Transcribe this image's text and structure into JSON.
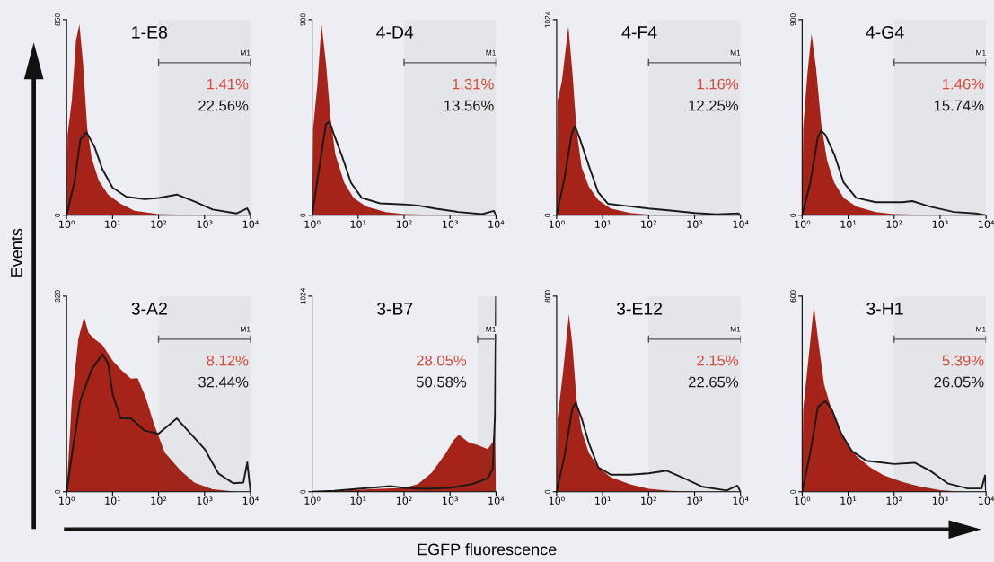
{
  "chart_data": [
    {
      "type": "area",
      "title": "1-E8",
      "ylabel": "Events",
      "log": "x",
      "xlim": [
        1,
        10000
      ],
      "xticks": [
        {
          "value": 1,
          "label": "10⁰"
        },
        {
          "value": 10,
          "label": "10¹"
        },
        {
          "value": 100,
          "label": "10²"
        },
        {
          "value": 1000,
          "label": "10³"
        },
        {
          "value": 10000,
          "label": "10⁴"
        }
      ],
      "ylim": [
        0,
        850
      ],
      "yticks": [
        0,
        850
      ],
      "bands": [
        {
          "axis": "x",
          "from": 100,
          "to": 10000,
          "label": "M1",
          "color": "#555555"
        }
      ],
      "annotations": [
        "1.41%",
        "22.56%"
      ],
      "series": [
        {
          "color": "#a52318",
          "x": [
            1,
            1.05,
            1.3,
            1.6,
            1.9,
            2.3,
            2.8,
            3.5,
            5,
            8,
            15,
            30,
            100,
            1000,
            10000
          ],
          "values": [
            0,
            350,
            500,
            760,
            830,
            650,
            380,
            250,
            150,
            90,
            50,
            20,
            5,
            0,
            0
          ]
        },
        {
          "type": "line",
          "color": "#1a1a1a",
          "x": [
            1,
            1.5,
            2,
            2.7,
            4,
            6,
            10,
            20,
            50,
            100,
            250,
            600,
            1500,
            5000,
            8500,
            10000
          ],
          "values": [
            0,
            150,
            330,
            360,
            300,
            200,
            120,
            80,
            70,
            75,
            90,
            60,
            25,
            8,
            30,
            0
          ]
        }
      ]
    },
    {
      "type": "area",
      "title": "4-D4",
      "log": "x",
      "xlim": [
        1,
        10000
      ],
      "xticks": [
        {
          "value": 1,
          "label": "10⁰"
        },
        {
          "value": 10,
          "label": "10¹"
        },
        {
          "value": 100,
          "label": "10²"
        },
        {
          "value": 1000,
          "label": "10³"
        },
        {
          "value": 10000,
          "label": "10⁴"
        }
      ],
      "ylim": [
        0,
        900
      ],
      "yticks": [
        0,
        900
      ],
      "bands": [
        {
          "axis": "x",
          "from": 100,
          "to": 10000,
          "label": "M1",
          "color": "#555555"
        }
      ],
      "annotations": [
        "1.31%",
        "13.56%"
      ],
      "series": [
        {
          "color": "#a52318",
          "x": [
            1,
            1.05,
            1.3,
            1.6,
            2,
            2.5,
            3.2,
            5,
            8,
            15,
            40,
            100,
            1000,
            10000
          ],
          "values": [
            0,
            400,
            600,
            880,
            700,
            450,
            280,
            150,
            80,
            40,
            15,
            5,
            0,
            0
          ]
        },
        {
          "type": "line",
          "color": "#1a1a1a",
          "x": [
            1,
            1.5,
            2,
            2.4,
            3,
            4.5,
            7,
            12,
            30,
            100,
            200,
            500,
            1500,
            5000,
            9000,
            10000
          ],
          "values": [
            0,
            250,
            420,
            430,
            370,
            270,
            150,
            80,
            55,
            50,
            45,
            30,
            15,
            5,
            20,
            0
          ]
        }
      ]
    },
    {
      "type": "area",
      "title": "4-F4",
      "log": "x",
      "xlim": [
        1,
        10000
      ],
      "xticks": [
        {
          "value": 1,
          "label": "10⁰"
        },
        {
          "value": 10,
          "label": "10¹"
        },
        {
          "value": 100,
          "label": "10²"
        },
        {
          "value": 1000,
          "label": "10³"
        },
        {
          "value": 10000,
          "label": "10⁴"
        }
      ],
      "ylim": [
        0,
        1024
      ],
      "yticks": [
        0,
        1024
      ],
      "bands": [
        {
          "axis": "x",
          "from": 100,
          "to": 10000,
          "label": "M1",
          "color": "#555555"
        }
      ],
      "annotations": [
        "1.16%",
        "12.25%"
      ],
      "series": [
        {
          "color": "#a52318",
          "x": [
            1,
            1.05,
            1.3,
            1.8,
            2.2,
            2.7,
            3.5,
            5,
            8,
            15,
            40,
            100,
            1000,
            10000
          ],
          "values": [
            0,
            600,
            700,
            990,
            750,
            450,
            250,
            150,
            80,
            35,
            12,
            4,
            0,
            0
          ]
        },
        {
          "type": "line",
          "color": "#1a1a1a",
          "x": [
            1,
            1.5,
            2.1,
            2.5,
            3.2,
            5,
            8,
            13,
            30,
            100,
            300,
            1000,
            3000,
            9000,
            10000
          ],
          "values": [
            0,
            200,
            420,
            467,
            400,
            260,
            120,
            60,
            50,
            35,
            25,
            12,
            5,
            10,
            0
          ]
        }
      ]
    },
    {
      "type": "area",
      "title": "4-G4",
      "log": "x",
      "xlim": [
        1,
        10000
      ],
      "xticks": [
        {
          "value": 1,
          "label": "10⁰"
        },
        {
          "value": 10,
          "label": "10¹"
        },
        {
          "value": 100,
          "label": "10²"
        },
        {
          "value": 1000,
          "label": "10³"
        },
        {
          "value": 10000,
          "label": "10⁴"
        }
      ],
      "ylim": [
        0,
        900
      ],
      "yticks": [
        0,
        900
      ],
      "bands": [
        {
          "axis": "x",
          "from": 100,
          "to": 10000,
          "label": "M1",
          "color": "#555555"
        }
      ],
      "annotations": [
        "1.46%",
        "15.74%"
      ],
      "series": [
        {
          "color": "#a52318",
          "x": [
            1,
            1.05,
            1.3,
            1.6,
            2,
            2.6,
            3.5,
            5,
            8,
            15,
            40,
            100,
            1000,
            10000
          ],
          "values": [
            0,
            400,
            650,
            836,
            680,
            420,
            250,
            150,
            80,
            40,
            15,
            5,
            0,
            0
          ]
        },
        {
          "type": "line",
          "color": "#1a1a1a",
          "x": [
            1,
            1.5,
            2.2,
            2.6,
            3.2,
            5,
            8,
            15,
            40,
            150,
            250,
            600,
            2000,
            6000,
            10000
          ],
          "values": [
            0,
            150,
            360,
            390,
            370,
            280,
            150,
            80,
            60,
            60,
            65,
            40,
            15,
            8,
            0
          ]
        }
      ]
    },
    {
      "type": "area",
      "title": "3-A2",
      "log": "x",
      "xlim": [
        1,
        10000
      ],
      "xticks": [
        {
          "value": 1,
          "label": "10⁰"
        },
        {
          "value": 10,
          "label": "10¹"
        },
        {
          "value": 100,
          "label": "10²"
        },
        {
          "value": 1000,
          "label": "10³"
        },
        {
          "value": 10000,
          "label": "10⁴"
        }
      ],
      "ylim": [
        0,
        320
      ],
      "yticks": [
        0,
        320
      ],
      "bands": [
        {
          "axis": "x",
          "from": 100,
          "to": 10000,
          "label": "M1",
          "color": "#555555"
        }
      ],
      "annotations": [
        "8.12%",
        "32.44%"
      ],
      "series": [
        {
          "color": "#a52318",
          "x": [
            1,
            1.3,
            1.8,
            2.4,
            3,
            4,
            6,
            10,
            15,
            25,
            35,
            53,
            80,
            137,
            300,
            600,
            1500,
            5000,
            10000
          ],
          "values": [
            0,
            150,
            250,
            286,
            260,
            250,
            240,
            215,
            200,
            185,
            186,
            154,
            110,
            64,
            35,
            15,
            4,
            0,
            0
          ]
        },
        {
          "type": "line",
          "color": "#1a1a1a",
          "x": [
            1,
            1.3,
            2,
            3.5,
            6,
            8,
            10,
            15,
            25,
            50,
            100,
            250,
            500,
            1000,
            2000,
            4200,
            7000,
            8500,
            9500,
            10000
          ],
          "values": [
            0,
            60,
            150,
            200,
            225,
            210,
            160,
            120,
            120,
            100,
            95,
            120,
            95,
            70,
            30,
            14,
            15,
            48,
            15,
            0
          ]
        }
      ]
    },
    {
      "type": "area",
      "title": "3-B7",
      "xlabel": "EGFP fluorescence",
      "log": "x",
      "xlim": [
        1,
        10000
      ],
      "xticks": [
        {
          "value": 1,
          "label": "10⁰"
        },
        {
          "value": 10,
          "label": "10¹"
        },
        {
          "value": 100,
          "label": "10²"
        },
        {
          "value": 1000,
          "label": "10³"
        },
        {
          "value": 10000,
          "label": "10⁴"
        }
      ],
      "ylim": [
        0,
        1024
      ],
      "yticks": [
        0,
        1024
      ],
      "bands": [
        {
          "axis": "x",
          "from": 4000,
          "to": 10000,
          "label": "M1",
          "color": "#555555"
        }
      ],
      "annotations": [
        "28.05%",
        "50.58%"
      ],
      "series": [
        {
          "color": "#a52318",
          "x": [
            1,
            3,
            10,
            30,
            100,
            200,
            400,
            800,
            1200,
            1560,
            2500,
            4000,
            6600,
            8500,
            9500,
            10000
          ],
          "values": [
            0,
            5,
            10,
            15,
            20,
            40,
            100,
            200,
            270,
            299,
            260,
            245,
            223,
            260,
            340,
            0
          ]
        },
        {
          "type": "line",
          "color": "#1a1a1a",
          "x": [
            1,
            3,
            10,
            30,
            50,
            100,
            300,
            1000,
            3000,
            6600,
            8500,
            9500,
            10000
          ],
          "values": [
            0,
            5,
            15,
            25,
            30,
            20,
            15,
            20,
            40,
            70,
            120,
            400,
            1024
          ]
        }
      ]
    },
    {
      "type": "area",
      "title": "3-E12",
      "log": "x",
      "xlim": [
        1,
        10000
      ],
      "xticks": [
        {
          "value": 1,
          "label": "10⁰"
        },
        {
          "value": 10,
          "label": "10¹"
        },
        {
          "value": 100,
          "label": "10²"
        },
        {
          "value": 1000,
          "label": "10³"
        },
        {
          "value": 10000,
          "label": "10⁴"
        }
      ],
      "ylim": [
        0,
        800
      ],
      "yticks": [
        0,
        800
      ],
      "bands": [
        {
          "axis": "x",
          "from": 100,
          "to": 10000,
          "label": "M1",
          "color": "#555555"
        }
      ],
      "annotations": [
        "2.15%",
        "22.65%"
      ],
      "series": [
        {
          "color": "#a52318",
          "x": [
            1,
            1.05,
            1.4,
            1.85,
            2.2,
            2.7,
            3.5,
            5,
            8,
            15,
            40,
            100,
            300,
            1000,
            10000
          ],
          "values": [
            0,
            300,
            500,
            727,
            600,
            380,
            250,
            160,
            100,
            60,
            30,
            12,
            4,
            0,
            0
          ]
        },
        {
          "type": "line",
          "color": "#1a1a1a",
          "x": [
            1,
            1.5,
            2.2,
            2.6,
            3.5,
            5,
            8,
            15,
            40,
            100,
            250,
            600,
            1500,
            5000,
            8500,
            10000
          ],
          "values": [
            0,
            150,
            340,
            364,
            300,
            200,
            100,
            70,
            70,
            75,
            86,
            55,
            20,
            5,
            25,
            0
          ]
        }
      ]
    },
    {
      "type": "area",
      "title": "3-H1",
      "log": "x",
      "xlim": [
        1,
        10000
      ],
      "xticks": [
        {
          "value": 1,
          "label": "10⁰"
        },
        {
          "value": 10,
          "label": "10¹"
        },
        {
          "value": 100,
          "label": "10²"
        },
        {
          "value": 1000,
          "label": "10³"
        },
        {
          "value": 10000,
          "label": "10⁴"
        }
      ],
      "ylim": [
        0,
        600
      ],
      "yticks": [
        0,
        600
      ],
      "bands": [
        {
          "axis": "x",
          "from": 100,
          "to": 10000,
          "label": "M1",
          "color": "#555555"
        }
      ],
      "annotations": [
        "5.39%",
        "26.05%"
      ],
      "series": [
        {
          "color": "#a52318",
          "x": [
            1,
            1.05,
            1.4,
            1.8,
            2.3,
            3,
            4,
            6,
            9,
            15,
            30,
            60,
            150,
            400,
            1000,
            3000,
            10000
          ],
          "values": [
            0,
            250,
            420,
            570,
            450,
            330,
            270,
            200,
            150,
            110,
            75,
            50,
            30,
            15,
            5,
            0,
            0
          ]
        },
        {
          "type": "line",
          "color": "#1a1a1a",
          "x": [
            1,
            1.5,
            2.2,
            3.2,
            4.5,
            7,
            12,
            25,
            50,
            100,
            280,
            600,
            1500,
            4000,
            8000,
            9500,
            10000
          ],
          "values": [
            0,
            120,
            260,
            278,
            250,
            180,
            125,
            95,
            90,
            85,
            89,
            65,
            25,
            10,
            10,
            50,
            0
          ]
        }
      ]
    }
  ]
}
